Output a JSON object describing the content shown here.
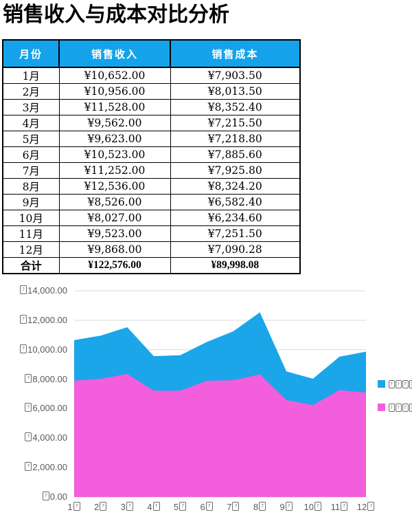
{
  "title": "销售收入与成本对比分析",
  "table": {
    "headers": [
      "月份",
      "销售收入",
      "销售成本"
    ],
    "rows": [
      [
        "1月",
        "¥10,652.00",
        "¥7,903.50"
      ],
      [
        "2月",
        "¥10,956.00",
        "¥8,013.50"
      ],
      [
        "3月",
        "¥11,528.00",
        "¥8,352.40"
      ],
      [
        "4月",
        "¥9,562.00",
        "¥7,215.50"
      ],
      [
        "5月",
        "¥9,623.00",
        "¥7,218.80"
      ],
      [
        "6月",
        "¥10,523.00",
        "¥7,885.60"
      ],
      [
        "7月",
        "¥11,252.00",
        "¥7,925.80"
      ],
      [
        "8月",
        "¥12,536.00",
        "¥8,324.20"
      ],
      [
        "9月",
        "¥8,526.00",
        "¥6,582.40"
      ],
      [
        "10月",
        "¥8,027.00",
        "¥6,234.60"
      ],
      [
        "11月",
        "¥9,523.00",
        "¥7,251.50"
      ],
      [
        "12月",
        "¥9,868.00",
        "¥7,090.28"
      ]
    ],
    "total": [
      "合计",
      "¥122,576.00",
      "¥89,998.08"
    ]
  },
  "chart_data": {
    "type": "area",
    "categories": [
      "1月",
      "2月",
      "3月",
      "4月",
      "5月",
      "6月",
      "7月",
      "8月",
      "9月",
      "10月",
      "11月",
      "12月"
    ],
    "x_tick_numbers": [
      "1",
      "2",
      "3",
      "4",
      "5",
      "6",
      "7",
      "8",
      "9",
      "10",
      "11",
      "12"
    ],
    "series": [
      {
        "name": "销售收入",
        "color": "#1ba6e9",
        "values": [
          10652,
          10956,
          11528,
          9562,
          9623,
          10523,
          11252,
          12536,
          8526,
          8027,
          9523,
          9868
        ]
      },
      {
        "name": "销售成本",
        "color": "#f35edc",
        "values": [
          7903.5,
          8013.5,
          8352.4,
          7215.5,
          7218.8,
          7885.6,
          7925.8,
          8324.2,
          6582.4,
          6234.6,
          7251.5,
          7090.28
        ]
      }
    ],
    "ylim": [
      0,
      14000
    ],
    "y_tick_step": 2000,
    "y_tick_labels": [
      "0.00",
      "2,000.00",
      "4,000.00",
      "6,000.00",
      "8,000.00",
      "10,000.00",
      "12,000.00",
      "14,000.00"
    ],
    "grid": "horizontal",
    "gridline_color": "#d9d9d9",
    "axis_text_color": "#595959",
    "legend_position": "right",
    "legend_glyph_boxes_per_entry": 4,
    "missing_glyph_display": "currency sign on y ticks, 月 suffix on x ticks and legend text render as tofu boxes"
  },
  "colors": {
    "header_bg": "#14a3ea",
    "header_text": "#ffffff",
    "table_border": "#000000",
    "revenue_area": "#1ba6e9",
    "cost_area": "#f35edc",
    "page_bg": "#ffffff"
  }
}
